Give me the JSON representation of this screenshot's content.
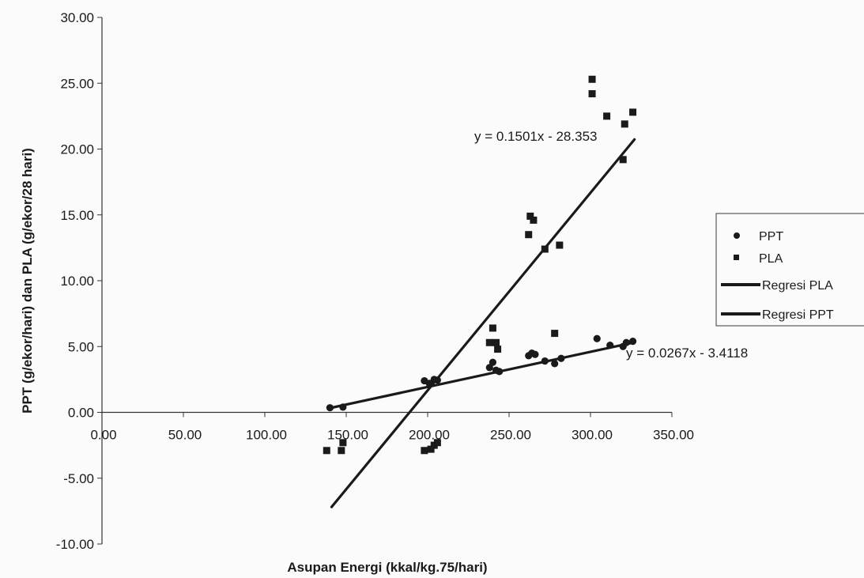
{
  "chart_data": {
    "type": "scatter",
    "title": "",
    "xlabel": "Asupan Energi (kkal/kg.75/hari)",
    "ylabel": "PPT (g/ekor/hari) dan PLA (g/ekor/28 hari)",
    "xlim": [
      0,
      350
    ],
    "ylim": [
      -10,
      30
    ],
    "x_ticks": [
      "0.00",
      "50.00",
      "100.00",
      "150.00",
      "200.00",
      "250.00",
      "300.00",
      "350.00"
    ],
    "y_ticks": [
      "-10.00",
      "-5.00",
      "0.00",
      "5.00",
      "10.00",
      "15.00",
      "20.00",
      "25.00",
      "30.00"
    ],
    "x_tick_values": [
      0,
      50,
      100,
      150,
      200,
      250,
      300,
      350
    ],
    "y_tick_values": [
      -10,
      -5,
      0,
      5,
      10,
      15,
      20,
      25,
      30
    ],
    "grid": false,
    "legend_position": "right",
    "series": [
      {
        "name": "PPT",
        "marker": "circle",
        "color": "#1a1a1a",
        "points": [
          [
            140,
            0.35
          ],
          [
            148,
            0.4
          ],
          [
            198,
            2.4
          ],
          [
            201,
            2.2
          ],
          [
            204,
            2.5
          ],
          [
            206,
            2.45
          ],
          [
            238,
            3.4
          ],
          [
            240,
            3.8
          ],
          [
            242,
            3.2
          ],
          [
            244,
            3.1
          ],
          [
            262,
            4.3
          ],
          [
            264,
            4.5
          ],
          [
            266,
            4.4
          ],
          [
            272,
            3.9
          ],
          [
            278,
            3.7
          ],
          [
            282,
            4.1
          ],
          [
            304,
            5.6
          ],
          [
            312,
            5.1
          ],
          [
            320,
            5.0
          ],
          [
            322,
            5.3
          ],
          [
            326,
            5.4
          ]
        ]
      },
      {
        "name": "PLA",
        "marker": "square",
        "color": "#1a1a1a",
        "points": [
          [
            138,
            -2.9
          ],
          [
            147,
            -2.9
          ],
          [
            148,
            -2.3
          ],
          [
            198,
            -2.9
          ],
          [
            202,
            -2.8
          ],
          [
            204,
            -2.5
          ],
          [
            206,
            -2.3
          ],
          [
            238,
            5.3
          ],
          [
            240,
            6.4
          ],
          [
            242,
            5.3
          ],
          [
            243,
            4.8
          ],
          [
            262,
            13.5
          ],
          [
            263,
            14.9
          ],
          [
            265,
            14.6
          ],
          [
            272,
            12.4
          ],
          [
            278,
            6.0
          ],
          [
            281,
            12.7
          ],
          [
            301,
            25.3
          ],
          [
            301,
            24.2
          ],
          [
            310,
            22.5
          ],
          [
            320,
            19.2
          ],
          [
            321,
            21.9
          ],
          [
            326,
            22.8
          ]
        ]
      },
      {
        "name": "Regresi PLA",
        "type": "line",
        "color": "#1a1a1a",
        "equation": "y = 0.1501x - 28.353",
        "slope": 0.1501,
        "intercept": -28.353,
        "x_range": [
          141,
          327
        ]
      },
      {
        "name": "Regresi PPT",
        "type": "line",
        "color": "#1a1a1a",
        "equation": "y = 0.0267x - 3.4118",
        "slope": 0.0267,
        "intercept": -3.4118,
        "x_range": [
          141,
          327
        ]
      }
    ]
  }
}
